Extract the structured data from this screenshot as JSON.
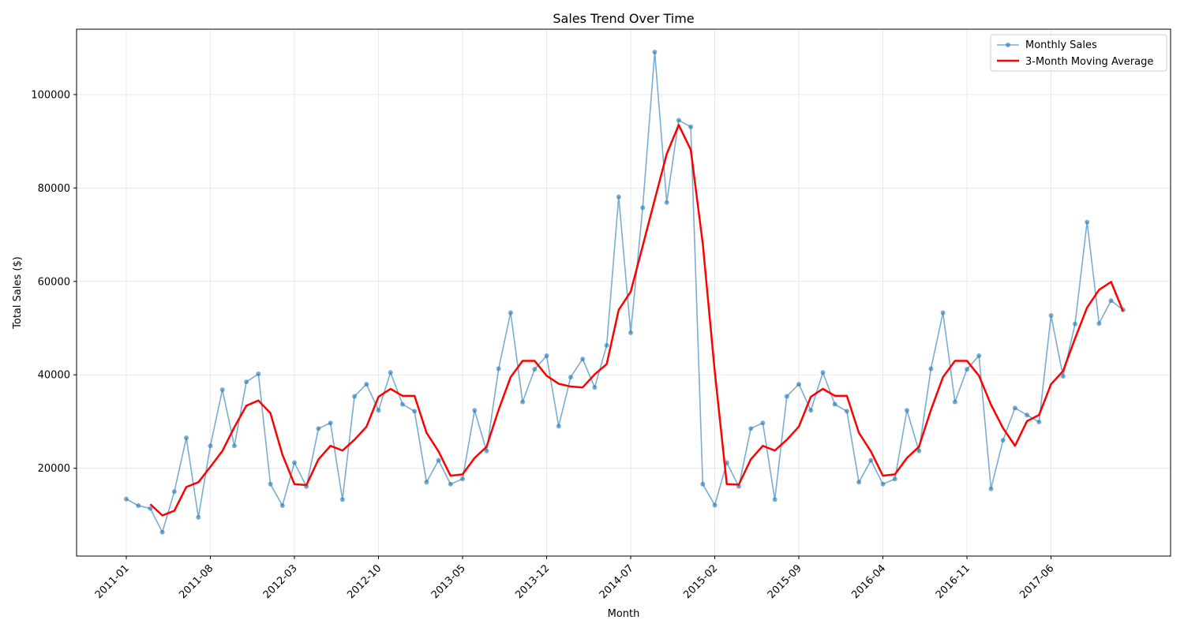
{
  "chart_data": {
    "type": "line",
    "title": "Sales Trend Over Time",
    "xlabel": "Month",
    "ylabel": "Total Sales ($)",
    "ylim": [
      1200,
      114000
    ],
    "yticks": [
      20000,
      40000,
      60000,
      80000,
      100000
    ],
    "xticks": [
      "2011-01",
      "2011-08",
      "2012-03",
      "2012-10",
      "2013-05",
      "2013-12",
      "2014-07",
      "2015-02",
      "2015-09",
      "2016-04",
      "2016-11",
      "2017-06"
    ],
    "grid": true,
    "legend_position": "upper right",
    "colors": {
      "sales": "#1f77b4",
      "moving_avg": "#ff0000"
    },
    "x": [
      "2011-01",
      "2011-02",
      "2011-03",
      "2011-04",
      "2011-05",
      "2011-06",
      "2011-07",
      "2011-08",
      "2011-09",
      "2011-10",
      "2011-11",
      "2011-12",
      "2012-01",
      "2012-02",
      "2012-03",
      "2012-04",
      "2012-05",
      "2012-06",
      "2012-07",
      "2012-08",
      "2012-09",
      "2012-10",
      "2012-11",
      "2012-12",
      "2013-01",
      "2013-02",
      "2013-03",
      "2013-04",
      "2013-05",
      "2013-06",
      "2013-07",
      "2013-08",
      "2013-09",
      "2013-10",
      "2013-11",
      "2013-12",
      "2014-01",
      "2014-02",
      "2014-03",
      "2014-04",
      "2014-05",
      "2014-06",
      "2014-07",
      "2014-08",
      "2014-09",
      "2014-10",
      "2014-11",
      "2014-12",
      "2015-01",
      "2015-02",
      "2015-03",
      "2015-04",
      "2015-05",
      "2015-06",
      "2015-07",
      "2015-08",
      "2015-09",
      "2015-10",
      "2015-11",
      "2015-12",
      "2016-01",
      "2016-02",
      "2016-03",
      "2016-04",
      "2016-05",
      "2016-06",
      "2016-07",
      "2016-08",
      "2016-09",
      "2016-10",
      "2016-11",
      "2016-12",
      "2017-01",
      "2017-02",
      "2017-03",
      "2017-04",
      "2017-05",
      "2017-06",
      "2017-07",
      "2017-08",
      "2017-09",
      "2017-10",
      "2017-11",
      "2017-12"
    ],
    "series": [
      {
        "name": "Monthly Sales",
        "values": [
          13400,
          12000,
          11400,
          6300,
          15000,
          26500,
          9500,
          24800,
          36800,
          24800,
          38500,
          40200,
          16600,
          12000,
          21200,
          16100,
          28500,
          29700,
          13300,
          35400,
          38000,
          32400,
          40500,
          33700,
          32200,
          17000,
          21700,
          16600,
          17700,
          32400,
          23700,
          41300,
          53300,
          34200,
          41200,
          44100,
          29000,
          39500,
          43400,
          37300,
          46300,
          78100,
          49000,
          75800,
          109100,
          76900,
          94500,
          93100,
          16600,
          12100,
          21200,
          16100,
          28500,
          29700,
          13300,
          35400,
          38000,
          32400,
          40500,
          33700,
          32200,
          17000,
          21700,
          16600,
          17700,
          32400,
          23700,
          41300,
          53300,
          34200,
          41200,
          44100,
          15600,
          26000,
          32900,
          31400,
          29900,
          52700,
          39700,
          50900,
          72700,
          51000,
          55900,
          53900
        ]
      },
      {
        "name": "3-Month Moving Average",
        "values": [
          null,
          null,
          12300,
          9900,
          10900,
          16000,
          17000,
          20300,
          23700,
          28800,
          33400,
          34500,
          31800,
          22900,
          16600,
          16400,
          21900,
          24800,
          23800,
          26100,
          28900,
          35300,
          37000,
          35500,
          35500,
          27600,
          23600,
          18400,
          18700,
          22200,
          24600,
          32500,
          39500,
          43000,
          43000,
          39800,
          38100,
          37500,
          37300,
          40100,
          42300,
          53900,
          57800,
          67600,
          77500,
          87300,
          93500,
          88200,
          68100,
          40700,
          16600,
          16500,
          21900,
          24800,
          23800,
          26100,
          28900,
          35300,
          37000,
          35500,
          35500,
          27600,
          23600,
          18400,
          18700,
          22200,
          24600,
          32500,
          39500,
          43000,
          43000,
          39800,
          33600,
          28600,
          24800,
          30100,
          31400,
          38000,
          40800,
          47800,
          54400,
          58200,
          59900,
          53600
        ]
      }
    ]
  }
}
